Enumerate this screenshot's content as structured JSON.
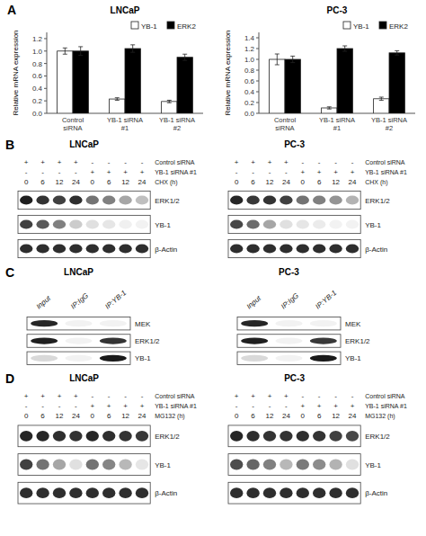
{
  "chart_data": [
    {
      "type": "bar",
      "title": "LNCaP",
      "ylabel": "Relative mRNA expression",
      "annotations": [
        "A"
      ],
      "categories": [
        "Control\nsiRNA",
        "YB-1 siRNA\n#1",
        "YB-1 siRNA\n#2"
      ],
      "series": [
        {
          "name": "YB-1",
          "color": "#ffffff",
          "values": [
            1.0,
            0.23,
            0.19
          ],
          "errors": [
            0.05,
            0.02,
            0.02
          ]
        },
        {
          "name": "ERK2",
          "color": "#000000",
          "values": [
            1.0,
            1.04,
            0.9
          ],
          "errors": [
            0.07,
            0.06,
            0.05
          ]
        }
      ],
      "ylim": [
        0,
        1.3
      ],
      "yticks": [
        {
          "value": 0,
          "label": "0.0"
        },
        0.2,
        0.4,
        0.6,
        0.8,
        {
          "value": 1.0,
          "label": "1.0"
        },
        1.2
      ],
      "legend": "upper right",
      "grid": false
    },
    {
      "type": "bar",
      "title": "PC-3",
      "ylabel": "Relative mRNA expression",
      "categories": [
        "Control\nsiRNA",
        "YB-1 siRNA\n#1",
        "YB-1 siRNA\n#2"
      ],
      "series": [
        {
          "name": "YB-1",
          "color": "#ffffff",
          "values": [
            1.0,
            0.1,
            0.27
          ],
          "errors": [
            0.1,
            0.02,
            0.03
          ]
        },
        {
          "name": "ERK2",
          "color": "#000000",
          "values": [
            1.0,
            1.2,
            1.12
          ],
          "errors": [
            0.06,
            0.05,
            0.04
          ]
        }
      ],
      "ylim": [
        0,
        1.5
      ],
      "yticks": [
        {
          "value": 0,
          "label": "0.0"
        },
        0.2,
        0.4,
        0.6,
        0.8,
        {
          "value": 1.0,
          "label": "1.0"
        },
        1.2,
        1.4
      ],
      "legend": "upper right",
      "grid": false
    },
    {
      "type": "blot",
      "title": "LNCaP",
      "annotations": [
        "B"
      ],
      "rows": [
        {
          "name": "Control siRNA",
          "values": [
            "+",
            "+",
            "+",
            "+",
            "-",
            "-",
            "-",
            "-"
          ]
        },
        {
          "name": "YB-1 siRNA #1",
          "values": [
            "-",
            "-",
            "-",
            "-",
            "+",
            "+",
            "+",
            "+"
          ]
        },
        {
          "name": "CHX (h)",
          "values": [
            "0",
            "6",
            "12",
            "24",
            "0",
            "6",
            "12",
            "24"
          ]
        }
      ],
      "series": [
        {
          "name": "ERK1/2",
          "values": [
            0.88,
            0.8,
            0.75,
            0.82,
            0.55,
            0.5,
            0.35,
            0.25
          ]
        },
        {
          "name": "YB-1",
          "values": [
            0.75,
            0.65,
            0.5,
            0.2,
            0.12,
            0.1,
            0.06,
            0.05
          ]
        },
        {
          "name": "β-Actin",
          "values": [
            0.82,
            0.82,
            0.82,
            0.82,
            0.82,
            0.82,
            0.82,
            0.82
          ]
        }
      ]
    },
    {
      "type": "blot",
      "title": "PC-3",
      "rows": [
        {
          "name": "Control siRNA",
          "values": [
            "+",
            "+",
            "+",
            "+",
            "-",
            "-",
            "-",
            "-"
          ]
        },
        {
          "name": "YB-1 siRNA #1",
          "values": [
            "-",
            "-",
            "-",
            "-",
            "+",
            "+",
            "+",
            "+"
          ]
        },
        {
          "name": "CHX (h)",
          "values": [
            "0",
            "6",
            "12",
            "24",
            "0",
            "6",
            "12",
            "24"
          ]
        }
      ],
      "series": [
        {
          "name": "ERK1/2",
          "values": [
            0.85,
            0.78,
            0.8,
            0.75,
            0.55,
            0.5,
            0.42,
            0.3
          ]
        },
        {
          "name": "YB-1",
          "values": [
            0.72,
            0.58,
            0.35,
            0.12,
            0.1,
            0.08,
            0.05,
            0.05
          ]
        },
        {
          "name": "β-Actin",
          "values": [
            0.82,
            0.82,
            0.82,
            0.82,
            0.82,
            0.82,
            0.82,
            0.82
          ]
        }
      ]
    },
    {
      "type": "blot",
      "title": "LNCaP",
      "annotations": [
        "C"
      ],
      "categories": [
        "Input",
        "IP:IgG",
        "IP:YB-1"
      ],
      "series": [
        {
          "name": "MEK",
          "values": [
            0.85,
            0.05,
            0.05
          ]
        },
        {
          "name": "ERK1/2",
          "values": [
            0.88,
            0.05,
            0.8
          ]
        },
        {
          "name": "YB-1",
          "values": [
            0.15,
            0.05,
            0.9
          ]
        }
      ]
    },
    {
      "type": "blot",
      "title": "PC-3",
      "categories": [
        "Input",
        "IP:IgG",
        "IP:YB-1"
      ],
      "series": [
        {
          "name": "MEK",
          "values": [
            0.85,
            0.05,
            0.05
          ]
        },
        {
          "name": "ERK1/2",
          "values": [
            0.88,
            0.05,
            0.78
          ]
        },
        {
          "name": "YB-1",
          "values": [
            0.15,
            0.05,
            0.9
          ]
        }
      ]
    },
    {
      "type": "blot",
      "title": "LNCaP",
      "annotations": [
        "D"
      ],
      "rows": [
        {
          "name": "Control siRNA",
          "values": [
            "+",
            "+",
            "+",
            "+",
            "-",
            "-",
            "-",
            "-"
          ]
        },
        {
          "name": "YB-1 siRNA #1",
          "values": [
            "-",
            "-",
            "-",
            "-",
            "+",
            "+",
            "+",
            "+"
          ]
        },
        {
          "name": "MG132 (h)",
          "values": [
            "0",
            "6",
            "12",
            "24",
            "0",
            "6",
            "12",
            "24"
          ]
        }
      ],
      "series": [
        {
          "name": "ERK1/2",
          "values": [
            0.85,
            0.85,
            0.82,
            0.8,
            0.85,
            0.82,
            0.8,
            0.78
          ]
        },
        {
          "name": "YB-1",
          "values": [
            0.75,
            0.55,
            0.35,
            0.12,
            0.55,
            0.48,
            0.28,
            0.1
          ]
        },
        {
          "name": "β-Actin",
          "values": [
            0.82,
            0.82,
            0.82,
            0.82,
            0.82,
            0.82,
            0.82,
            0.82
          ]
        }
      ]
    },
    {
      "type": "blot",
      "title": "PC-3",
      "rows": [
        {
          "name": "Control siRNA",
          "values": [
            "+",
            "+",
            "+",
            "+",
            "-",
            "-",
            "-",
            "-"
          ]
        },
        {
          "name": "YB-1 siRNA #1",
          "values": [
            "-",
            "-",
            "-",
            "-",
            "+",
            "+",
            "+",
            "+"
          ]
        },
        {
          "name": "MG132 (h)",
          "values": [
            "0",
            "6",
            "12",
            "24",
            "0",
            "6",
            "12",
            "24"
          ]
        }
      ],
      "series": [
        {
          "name": "ERK1/2",
          "values": [
            0.85,
            0.82,
            0.8,
            0.8,
            0.82,
            0.8,
            0.75,
            0.72
          ]
        },
        {
          "name": "YB-1",
          "values": [
            0.7,
            0.6,
            0.5,
            0.28,
            0.52,
            0.45,
            0.3,
            0.12
          ]
        },
        {
          "name": "β-Actin",
          "values": [
            0.82,
            0.82,
            0.82,
            0.82,
            0.82,
            0.82,
            0.82,
            0.82
          ]
        }
      ]
    }
  ]
}
